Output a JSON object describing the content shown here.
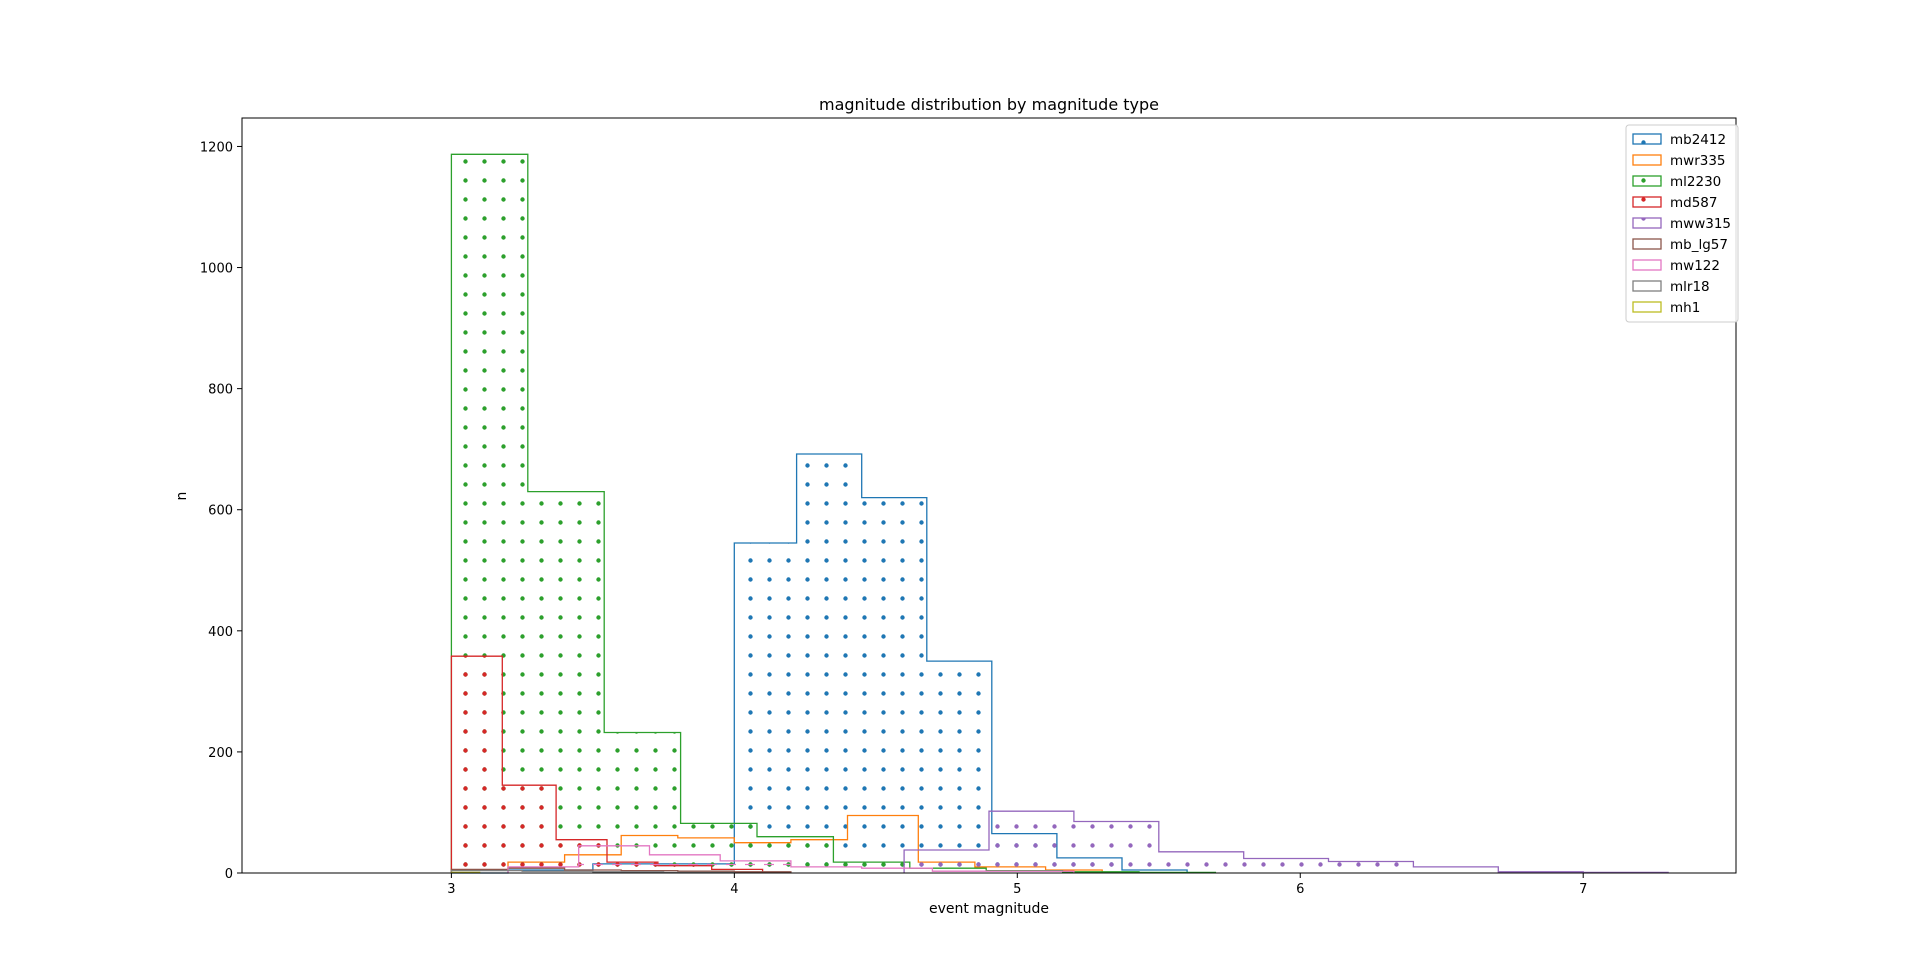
{
  "chart_data": {
    "type": "histogram-step",
    "title": "magnitude distribution by magnitude type",
    "xlabel": "event magnitude",
    "ylabel": "n",
    "xlim": [
      2.26,
      7.54
    ],
    "ylim": [
      0,
      1247
    ],
    "xticks": [
      3,
      4,
      5,
      6,
      7
    ],
    "yticks": [
      0,
      200,
      400,
      600,
      800,
      1000,
      1200
    ],
    "grid": false,
    "legend_position": "top-right",
    "series": [
      {
        "name": "mb2412",
        "color": "#1f77b4",
        "hatch": "dots",
        "edges": [
          3.0,
          3.2,
          3.5,
          4.0,
          4.22,
          4.45,
          4.68,
          4.91,
          5.14,
          5.37,
          5.6
        ],
        "counts": [
          0,
          5,
          15,
          545,
          692,
          620,
          350,
          65,
          25,
          5
        ]
      },
      {
        "name": "mwr335",
        "color": "#ff7f0e",
        "hatch": "none",
        "edges": [
          3.0,
          3.2,
          3.4,
          3.6,
          3.8,
          4.0,
          4.2,
          4.4,
          4.65,
          4.85,
          5.1,
          5.3
        ],
        "counts": [
          5,
          18,
          30,
          62,
          58,
          50,
          55,
          95,
          18,
          10,
          5
        ]
      },
      {
        "name": "ml2230",
        "color": "#2ca02c",
        "hatch": "dots",
        "edges": [
          3.0,
          3.27,
          3.54,
          3.81,
          4.08,
          4.35,
          4.62,
          4.89,
          5.16,
          5.43,
          5.7
        ],
        "counts": [
          1187,
          630,
          232,
          82,
          60,
          18,
          8,
          4,
          2,
          1
        ]
      },
      {
        "name": "md587",
        "color": "#d62728",
        "hatch": "dots",
        "edges": [
          3.0,
          3.18,
          3.37,
          3.55,
          3.73,
          3.92,
          4.1
        ],
        "counts": [
          358,
          145,
          55,
          18,
          12,
          6
        ]
      },
      {
        "name": "mww315",
        "color": "#9467bd",
        "hatch": "dots",
        "edges": [
          4.6,
          4.9,
          5.2,
          5.5,
          5.8,
          6.1,
          6.4,
          6.7,
          7.0,
          7.3
        ],
        "counts": [
          38,
          102,
          85,
          35,
          24,
          19,
          10,
          2,
          1
        ]
      },
      {
        "name": "mb_lg57",
        "color": "#8c564b",
        "hatch": "none",
        "edges": [
          3.0,
          3.2,
          3.4,
          3.6,
          3.8,
          4.0,
          4.2
        ],
        "counts": [
          6,
          8,
          5,
          4,
          3,
          2
        ]
      },
      {
        "name": "mw122",
        "color": "#e377c2",
        "hatch": "dash",
        "edges": [
          3.2,
          3.45,
          3.7,
          3.95,
          4.2,
          4.45,
          4.7,
          5.2
        ],
        "counts": [
          10,
          45,
          30,
          20,
          10,
          8,
          3
        ]
      },
      {
        "name": "mlr18",
        "color": "#7f7f7f",
        "hatch": "dots",
        "edges": [
          3.0,
          3.25,
          3.5,
          3.75,
          4.0
        ],
        "counts": [
          4,
          3,
          2,
          1
        ]
      },
      {
        "name": "mh1",
        "color": "#bcbd22",
        "hatch": "dash",
        "edges": [
          3.0,
          3.1
        ],
        "counts": [
          1
        ]
      }
    ]
  }
}
